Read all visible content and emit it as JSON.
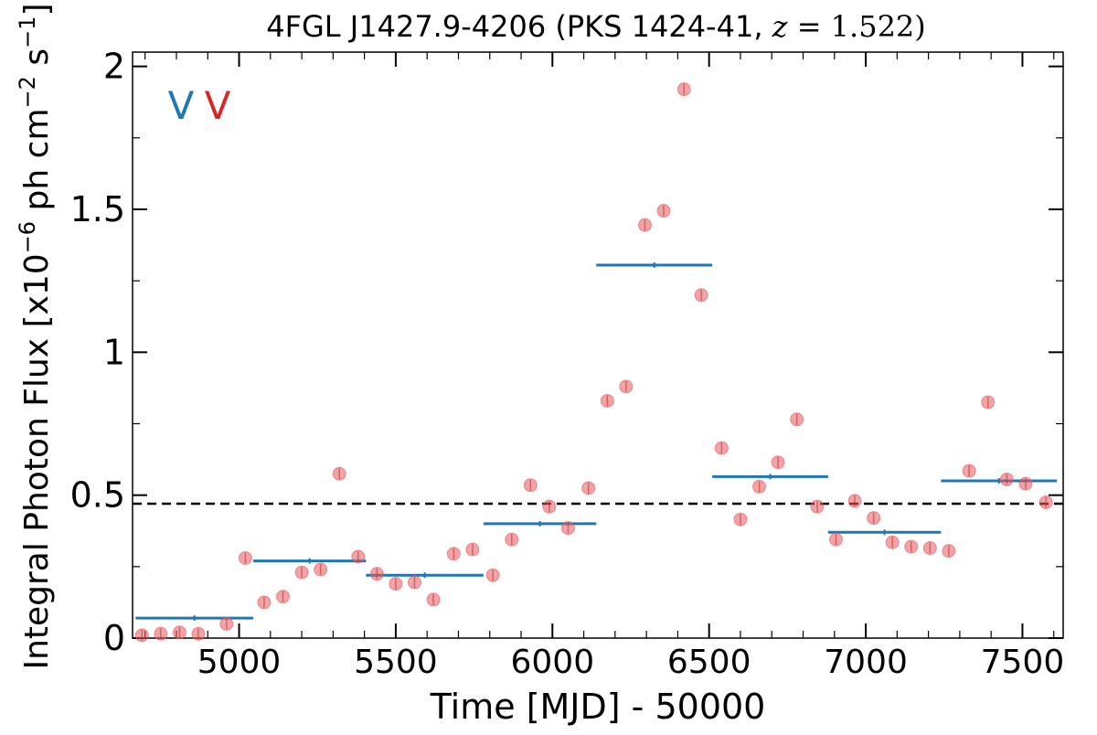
{
  "chart_data": {
    "type": "scatter",
    "title": "4FGL J1427.9-4206 (PKS 1424-41, z = 1.522)",
    "xlabel": "Time [MJD] - 50000",
    "ylabel": "Integral Photon Flux [x10^-6 ph cm^-2 s^-1]",
    "xlim": [
      4660,
      7630
    ],
    "ylim": [
      0,
      2.05
    ],
    "x_ticks": [
      5000,
      5500,
      6000,
      6500,
      7000,
      7500
    ],
    "x_tick_labels": [
      "5000",
      "5500",
      "6000",
      "6500",
      "7000",
      "7500"
    ],
    "y_ticks": [
      0,
      0.5,
      1,
      1.5,
      2
    ],
    "y_tick_labels": [
      "0",
      "0.5",
      "1",
      "1.5",
      "2"
    ],
    "legend_markers": [
      {
        "text": "V",
        "color": "#1f77b4"
      },
      {
        "text": "V",
        "color": "#d62728"
      }
    ],
    "average_line": {
      "y": 0.47,
      "style": "dashed",
      "color": "#000000"
    },
    "series": [
      {
        "style": "points",
        "color": "#e8585e",
        "points": [
          {
            "x": 4690,
            "y": 0.01
          },
          {
            "x": 4750,
            "y": 0.015
          },
          {
            "x": 4810,
            "y": 0.02
          },
          {
            "x": 4870,
            "y": 0.015
          },
          {
            "x": 4960,
            "y": 0.05
          },
          {
            "x": 5020,
            "y": 0.28
          },
          {
            "x": 5080,
            "y": 0.125
          },
          {
            "x": 5140,
            "y": 0.145
          },
          {
            "x": 5200,
            "y": 0.23
          },
          {
            "x": 5260,
            "y": 0.24
          },
          {
            "x": 5320,
            "y": 0.575
          },
          {
            "x": 5380,
            "y": 0.285
          },
          {
            "x": 5440,
            "y": 0.225
          },
          {
            "x": 5500,
            "y": 0.19
          },
          {
            "x": 5560,
            "y": 0.195
          },
          {
            "x": 5620,
            "y": 0.135
          },
          {
            "x": 5685,
            "y": 0.295
          },
          {
            "x": 5745,
            "y": 0.31
          },
          {
            "x": 5810,
            "y": 0.22
          },
          {
            "x": 5870,
            "y": 0.345
          },
          {
            "x": 5930,
            "y": 0.535
          },
          {
            "x": 5990,
            "y": 0.46
          },
          {
            "x": 6050,
            "y": 0.385
          },
          {
            "x": 6115,
            "y": 0.525
          },
          {
            "x": 6175,
            "y": 0.83
          },
          {
            "x": 6235,
            "y": 0.88
          },
          {
            "x": 6295,
            "y": 1.445
          },
          {
            "x": 6355,
            "y": 1.495
          },
          {
            "x": 6420,
            "y": 1.92
          },
          {
            "x": 6475,
            "y": 1.2
          },
          {
            "x": 6540,
            "y": 0.665
          },
          {
            "x": 6600,
            "y": 0.415
          },
          {
            "x": 6660,
            "y": 0.53
          },
          {
            "x": 6720,
            "y": 0.615
          },
          {
            "x": 6780,
            "y": 0.765
          },
          {
            "x": 6845,
            "y": 0.46
          },
          {
            "x": 6905,
            "y": 0.345
          },
          {
            "x": 6965,
            "y": 0.48
          },
          {
            "x": 7025,
            "y": 0.42
          },
          {
            "x": 7085,
            "y": 0.335
          },
          {
            "x": 7145,
            "y": 0.32
          },
          {
            "x": 7205,
            "y": 0.315
          },
          {
            "x": 7265,
            "y": 0.305
          },
          {
            "x": 7330,
            "y": 0.585
          },
          {
            "x": 7390,
            "y": 0.825
          },
          {
            "x": 7450,
            "y": 0.555
          },
          {
            "x": 7510,
            "y": 0.54
          },
          {
            "x": 7575,
            "y": 0.475
          }
        ]
      },
      {
        "style": "binned-horizontal-bars",
        "color": "#1f77b4",
        "bins": [
          {
            "x_start": 4670,
            "x_end": 5045,
            "y": 0.07
          },
          {
            "x_start": 5045,
            "x_end": 5405,
            "y": 0.27
          },
          {
            "x_start": 5405,
            "x_end": 5780,
            "y": 0.22
          },
          {
            "x_start": 5780,
            "x_end": 6140,
            "y": 0.4
          },
          {
            "x_start": 6140,
            "x_end": 6510,
            "y": 1.305
          },
          {
            "x_start": 6510,
            "x_end": 6880,
            "y": 0.565
          },
          {
            "x_start": 6880,
            "x_end": 7240,
            "y": 0.37
          },
          {
            "x_start": 7240,
            "x_end": 7610,
            "y": 0.55
          }
        ]
      }
    ]
  }
}
